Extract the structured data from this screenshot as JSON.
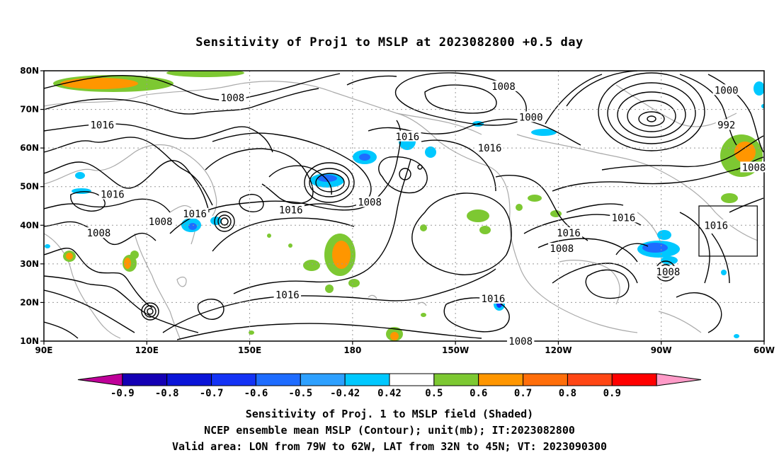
{
  "title": "Sensitivity of Proj1 to MSLP at 2023082800 +0.5 day",
  "map": {
    "lon_range": [
      90,
      300
    ],
    "lat_range": [
      10,
      80
    ],
    "lon_ticks": [
      {
        "lon": 90,
        "label": "90E"
      },
      {
        "lon": 120,
        "label": "120E"
      },
      {
        "lon": 150,
        "label": "150E"
      },
      {
        "lon": 180,
        "label": "180"
      },
      {
        "lon": 210,
        "label": "150W"
      },
      {
        "lon": 240,
        "label": "120W"
      },
      {
        "lon": 270,
        "label": "90W"
      },
      {
        "lon": 300,
        "label": "60W"
      }
    ],
    "lat_ticks": [
      {
        "lat": 10,
        "label": "10N"
      },
      {
        "lat": 20,
        "label": "20N"
      },
      {
        "lat": 30,
        "label": "30N"
      },
      {
        "lat": 40,
        "label": "40N"
      },
      {
        "lat": 50,
        "label": "50N"
      },
      {
        "lat": 60,
        "label": "60N"
      },
      {
        "lat": 70,
        "label": "70N"
      },
      {
        "lat": 80,
        "label": "80N"
      }
    ],
    "grid": true,
    "valid_box": {
      "lon1": 281,
      "lon2": 298,
      "lat1": 32,
      "lat2": 45
    },
    "contour_labels": [
      {
        "text": "1008",
        "lon": 145,
        "lat": 73
      },
      {
        "text": "1016",
        "lon": 107,
        "lat": 66
      },
      {
        "text": "1016",
        "lon": 110,
        "lat": 48
      },
      {
        "text": "1008",
        "lon": 106,
        "lat": 38
      },
      {
        "text": "1008",
        "lon": 124,
        "lat": 41
      },
      {
        "text": "1016",
        "lon": 134,
        "lat": 43
      },
      {
        "text": "1016",
        "lon": 162,
        "lat": 44
      },
      {
        "text": "1008",
        "lon": 185,
        "lat": 46
      },
      {
        "text": "1016",
        "lon": 161,
        "lat": 22
      },
      {
        "text": "1016",
        "lon": 196,
        "lat": 63
      },
      {
        "text": "1016",
        "lon": 220,
        "lat": 60
      },
      {
        "text": "1008",
        "lon": 224,
        "lat": 76
      },
      {
        "text": "1000",
        "lon": 232,
        "lat": 68
      },
      {
        "text": "1016",
        "lon": 243,
        "lat": 38
      },
      {
        "text": "1008",
        "lon": 241,
        "lat": 34
      },
      {
        "text": "1016",
        "lon": 221,
        "lat": 21
      },
      {
        "text": "1016",
        "lon": 259,
        "lat": 42
      },
      {
        "text": "1008",
        "lon": 229,
        "lat": 10
      },
      {
        "text": "1000",
        "lon": 289,
        "lat": 75
      },
      {
        "text": "992",
        "lon": 289,
        "lat": 66
      },
      {
        "text": "1008",
        "lon": 297,
        "lat": 55
      },
      {
        "text": "1016",
        "lon": 286,
        "lat": 40
      },
      {
        "text": "1008",
        "lon": 272,
        "lat": 28
      }
    ]
  },
  "colorbar": {
    "colors": [
      "#bf0099",
      "#1400b4",
      "#0a14d8",
      "#1433f5",
      "#1e6cff",
      "#2da0ff",
      "#00c8ff",
      "#ffffff",
      "#7dc832",
      "#ff9600",
      "#ff6e0a",
      "#ff4614",
      "#ff0000",
      "#ff9bc8"
    ],
    "labels": [
      "-0.9",
      "-0.8",
      "-0.7",
      "-0.6",
      "-0.5",
      "-0.42",
      "0.42",
      "0.5",
      "0.6",
      "0.7",
      "0.8",
      "0.9"
    ]
  },
  "caption": {
    "line1": "Sensitivity of Proj. 1 to MSLP field (Shaded)",
    "line2": "NCEP ensemble mean MSLP (Contour); unit(mb); IT:2023082800",
    "line3": "Valid area: LON from 79W to 62W, LAT from 32N to 45N; VT: 2023090300"
  }
}
